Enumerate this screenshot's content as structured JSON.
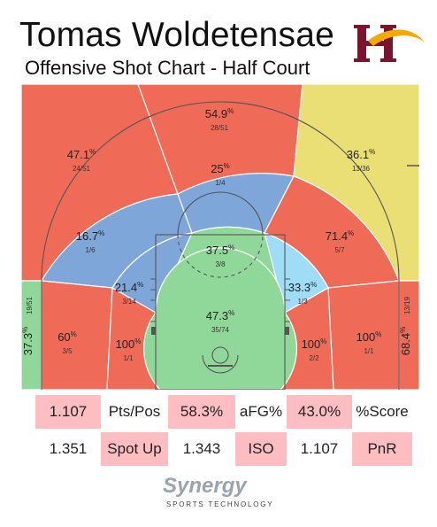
{
  "header": {
    "player_name": "Tomas Woldetensae",
    "subtitle": "Offensive Shot Chart - Half Court"
  },
  "logo": {
    "name": "hopkins-h-logo",
    "colors": {
      "maroon": "#7a1530",
      "gold": "#f2a900"
    }
  },
  "colors": {
    "hot": "#ef6b58",
    "average": "#e9df74",
    "cold": "#7ea6d9",
    "very_cold": "#9fdcf6",
    "good": "#90d89a"
  },
  "chart_data": {
    "type": "heatmap",
    "title": "Offensive Shot Chart - Half Court",
    "zones": [
      {
        "id": "left-deep",
        "pct": "47.1",
        "made_att": "24/51",
        "rating": "hot"
      },
      {
        "id": "center-deep",
        "pct": "54.9",
        "made_att": "28/51",
        "rating": "hot"
      },
      {
        "id": "right-deep",
        "pct": "36.1",
        "made_att": "13/36",
        "rating": "average"
      },
      {
        "id": "left-corner-three",
        "pct": "37.3",
        "made_att": "19/51",
        "rating": "good"
      },
      {
        "id": "right-corner-three",
        "pct": "68.4",
        "made_att": "13/19",
        "rating": "hot"
      },
      {
        "id": "left-wing-three",
        "pct": "16.7",
        "made_att": "1/6",
        "rating": "cold"
      },
      {
        "id": "top-key-three",
        "pct": "25",
        "made_att": "1/4",
        "rating": "cold"
      },
      {
        "id": "right-wing-three",
        "pct": "71.4",
        "made_att": "5/7",
        "rating": "hot"
      },
      {
        "id": "left-baseline-long-two",
        "pct": "60",
        "made_att": "3/5",
        "rating": "hot"
      },
      {
        "id": "right-baseline-long-two",
        "pct": "100",
        "made_att": "1/1",
        "rating": "hot"
      },
      {
        "id": "left-elbow-mid",
        "pct": "21.4",
        "made_att": "3/14",
        "rating": "cold"
      },
      {
        "id": "right-elbow-mid",
        "pct": "33.3",
        "made_att": "1/3",
        "rating": "very_cold"
      },
      {
        "id": "free-throw-area",
        "pct": "37.5",
        "made_att": "3/8",
        "rating": "good"
      },
      {
        "id": "left-baseline-mid",
        "pct": "100",
        "made_att": "1/1",
        "rating": "hot"
      },
      {
        "id": "right-baseline-mid",
        "pct": "100",
        "made_att": "2/2",
        "rating": "hot"
      },
      {
        "id": "restricted-area",
        "pct": "47.3",
        "made_att": "35/74",
        "rating": "good"
      }
    ]
  },
  "stats": {
    "row1": [
      "1.107",
      "Pts/Pos",
      "58.3%",
      "aFG%",
      "43.0%",
      "%Score"
    ],
    "row2": [
      "1.351",
      "Spot Up",
      "1.343",
      "ISO",
      "1.107",
      "PnR"
    ]
  },
  "footer": {
    "brand": "Synergy",
    "tagline": "SPORTS TECHNOLOGY"
  }
}
